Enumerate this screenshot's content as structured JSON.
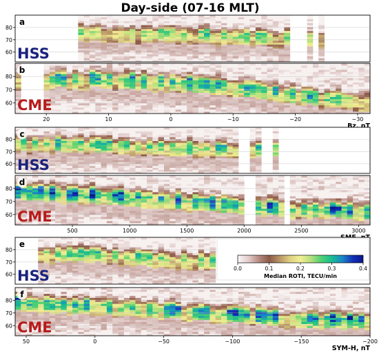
{
  "figure": {
    "title": "Day-side (07-16 MLT)",
    "colorbar": {
      "label": "Median ROTI, TECU/min",
      "ticks": [
        "0.0",
        "0.1",
        "0.2",
        "0.3",
        "0.4"
      ],
      "range": [
        0.0,
        0.4
      ],
      "stops": [
        "#fbf8f8",
        "#e3cfcd",
        "#b88d84",
        "#8c5a48",
        "#b89466",
        "#dfd282",
        "#f2ee94",
        "#b5df7c",
        "#4fcf73",
        "#19bc92",
        "#1a87c6",
        "#1430b8",
        "#0a178a"
      ]
    }
  },
  "chart_data": [
    {
      "panel": "a",
      "type": "heatmap",
      "storm_type": "HSS",
      "storm_color": "#1a237e",
      "x_range": [
        25,
        -32
      ],
      "x_ticks": [],
      "xlabel": "",
      "ylim": [
        52,
        90
      ],
      "y_ticks": [
        "60",
        "70",
        "80"
      ],
      "data_x_range": [
        15,
        -25
      ],
      "gaps": [
        [
          -19,
          -21.8
        ],
        [
          -22.8,
          -23.5
        ]
      ],
      "band_center": [
        [
          15,
          77
        ],
        [
          5,
          76
        ],
        [
          -5,
          75
        ],
        [
          -15,
          73
        ],
        [
          -25,
          73
        ]
      ],
      "intensity": 0.58,
      "noise": 0.1,
      "seed": 11
    },
    {
      "panel": "b",
      "type": "heatmap",
      "storm_type": "CME",
      "storm_color": "#b71c1c",
      "x_range": [
        25,
        -32
      ],
      "x_ticks": [
        "20",
        "10",
        "0",
        "−10",
        "−20",
        "−30"
      ],
      "xlabel": "Bz, nT",
      "ylim": [
        52,
        90
      ],
      "y_ticks": [
        "60",
        "70",
        "80"
      ],
      "data_x_range": [
        25,
        -32
      ],
      "gaps": [
        [
          24.2,
          20.8
        ]
      ],
      "band_center": [
        [
          25,
          79
        ],
        [
          10,
          79
        ],
        [
          0,
          77
        ],
        [
          -10,
          73
        ],
        [
          -20,
          67
        ],
        [
          -30,
          63
        ]
      ],
      "intensity": 0.66,
      "noise": 0.11,
      "seed": 23
    },
    {
      "panel": "c",
      "type": "heatmap",
      "storm_type": "HSS",
      "storm_color": "#1a237e",
      "x_range": [
        0,
        3100
      ],
      "x_ticks": [],
      "xlabel": "",
      "ylim": [
        52,
        90
      ],
      "y_ticks": [
        "60",
        "70",
        "80"
      ],
      "data_x_range": [
        0,
        2400
      ],
      "gaps": [
        [
          1950,
          2040
        ],
        [
          2170,
          2230
        ],
        [
          2310,
          2390
        ]
      ],
      "band_center": [
        [
          0,
          78
        ],
        [
          600,
          77
        ],
        [
          1200,
          75
        ],
        [
          1800,
          73
        ],
        [
          2400,
          73
        ]
      ],
      "intensity": 0.62,
      "noise": 0.1,
      "seed": 37
    },
    {
      "panel": "d",
      "type": "heatmap",
      "storm_type": "CME",
      "storm_color": "#b71c1c",
      "x_range": [
        0,
        3100
      ],
      "x_ticks": [
        "500",
        "1000",
        "1500",
        "2000",
        "2500",
        "3000"
      ],
      "xlabel": "SME, nT",
      "ylim": [
        52,
        90
      ],
      "y_ticks": [
        "60",
        "70",
        "80"
      ],
      "data_x_range": [
        0,
        3100
      ],
      "gaps": [
        [
          2000,
          2080
        ],
        [
          2360,
          2420
        ]
      ],
      "band_center": [
        [
          0,
          79
        ],
        [
          800,
          76
        ],
        [
          1600,
          71
        ],
        [
          2400,
          66
        ],
        [
          3100,
          64
        ]
      ],
      "intensity": 0.78,
      "noise": 0.12,
      "seed": 41
    },
    {
      "panel": "e",
      "type": "heatmap",
      "storm_type": "HSS",
      "storm_color": "#1a237e",
      "x_range": [
        58,
        -200
      ],
      "x_ticks": [],
      "xlabel": "",
      "ylim": [
        52,
        90
      ],
      "y_ticks": [
        "60",
        "70",
        "80"
      ],
      "data_x_range": [
        42,
        -88
      ],
      "gaps": [],
      "band_center": [
        [
          42,
          78
        ],
        [
          0,
          77
        ],
        [
          -40,
          74
        ],
        [
          -88,
          72
        ]
      ],
      "intensity": 0.6,
      "noise": 0.09,
      "seed": 53
    },
    {
      "panel": "f",
      "type": "heatmap",
      "storm_type": "CME",
      "storm_color": "#b71c1c",
      "x_range": [
        58,
        -200
      ],
      "x_ticks": [
        "50",
        "0",
        "−50",
        "−100",
        "−150",
        "−200"
      ],
      "xlabel": "SYM-H, nT",
      "ylim": [
        52,
        90
      ],
      "y_ticks": [
        "60",
        "70",
        "80"
      ],
      "data_x_range": [
        58,
        -200
      ],
      "gaps": [],
      "band_center": [
        [
          58,
          79
        ],
        [
          0,
          77
        ],
        [
          -50,
          74
        ],
        [
          -100,
          70
        ],
        [
          -150,
          66
        ],
        [
          -200,
          65
        ]
      ],
      "intensity": 0.72,
      "noise": 0.12,
      "seed": 67
    }
  ]
}
